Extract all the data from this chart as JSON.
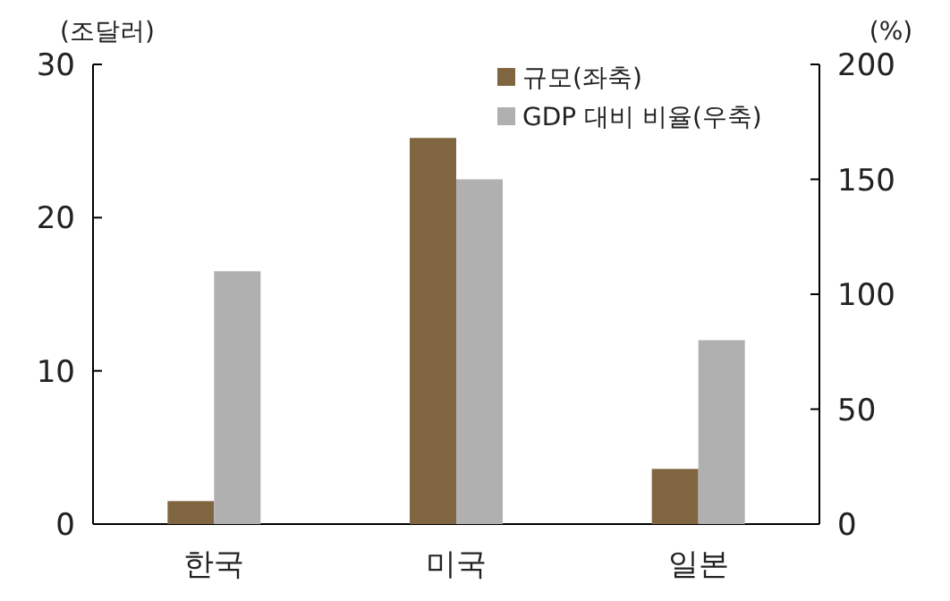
{
  "chart_data": {
    "type": "bar",
    "ylabel": "(조달러)",
    "y2label": "(%)",
    "categories": [
      "한국",
      "미국",
      "일본"
    ],
    "series": [
      {
        "name": "규모(좌축)",
        "color": "#806640",
        "values": [
          1.5,
          25.2,
          3.6
        ]
      },
      {
        "name": "GDP 대비 비율(우축)",
        "color": "#b0b0b0",
        "values": [
          110,
          150,
          80
        ],
        "axis": "y2"
      }
    ],
    "ylim": [
      0,
      30
    ],
    "yticks": [
      0,
      10,
      20,
      30
    ],
    "y2lim": [
      0,
      200
    ],
    "y2ticks": [
      0,
      50,
      100,
      150,
      200
    ],
    "legend": "top right",
    "grid": false
  }
}
